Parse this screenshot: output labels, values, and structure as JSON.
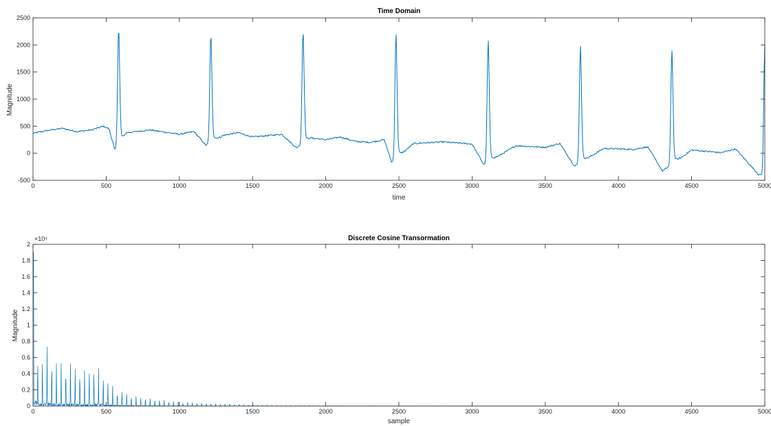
{
  "chart_data": [
    {
      "type": "line",
      "title": "Time Domain",
      "xlabel": "time",
      "ylabel": "Magnitude",
      "xlim": [
        0,
        5000
      ],
      "ylim": [
        -500,
        2500
      ],
      "xticks": [
        0,
        500,
        1000,
        1500,
        2000,
        2500,
        3000,
        3500,
        4000,
        4500,
        5000
      ],
      "yticks": [
        -500,
        0,
        500,
        1000,
        1500,
        2000,
        2500
      ],
      "grid": false,
      "color": "#0072BD",
      "baseline_points": [
        [
          0,
          370
        ],
        [
          100,
          420
        ],
        [
          200,
          460
        ],
        [
          300,
          400
        ],
        [
          400,
          430
        ],
        [
          480,
          500
        ],
        [
          520,
          450
        ],
        [
          560,
          50
        ],
        [
          640,
          380
        ],
        [
          800,
          430
        ],
        [
          1000,
          350
        ],
        [
          1100,
          400
        ],
        [
          1180,
          150
        ],
        [
          1300,
          330
        ],
        [
          1400,
          380
        ],
        [
          1500,
          300
        ],
        [
          1700,
          350
        ],
        [
          1800,
          100
        ],
        [
          1900,
          280
        ],
        [
          2000,
          250
        ],
        [
          2100,
          300
        ],
        [
          2200,
          220
        ],
        [
          2300,
          200
        ],
        [
          2400,
          250
        ],
        [
          2450,
          -170
        ],
        [
          2600,
          180
        ],
        [
          2800,
          210
        ],
        [
          3000,
          170
        ],
        [
          3080,
          -210
        ],
        [
          3300,
          140
        ],
        [
          3500,
          110
        ],
        [
          3600,
          180
        ],
        [
          3700,
          -240
        ],
        [
          3900,
          90
        ],
        [
          4100,
          70
        ],
        [
          4200,
          120
        ],
        [
          4300,
          -330
        ],
        [
          4500,
          60
        ],
        [
          4700,
          10
        ],
        [
          4800,
          80
        ],
        [
          4960,
          -400
        ]
      ],
      "peaks": [
        {
          "x": 585,
          "y": 2330
        },
        {
          "x": 1215,
          "y": 2200
        },
        {
          "x": 1845,
          "y": 2260
        },
        {
          "x": 2480,
          "y": 2210
        },
        {
          "x": 3110,
          "y": 2090
        },
        {
          "x": 3740,
          "y": 1990
        },
        {
          "x": 4365,
          "y": 1910
        },
        {
          "x": 5000,
          "y": 2020
        }
      ]
    },
    {
      "type": "line",
      "title": "Discrete Cosine Transormation",
      "xlabel": "sample",
      "ylabel": "Magnitude",
      "ylabel_exponent": "×10⁴",
      "xlim": [
        0,
        5000
      ],
      "ylim": [
        0,
        2
      ],
      "xticks": [
        0,
        500,
        1000,
        1500,
        2000,
        2500,
        3000,
        3500,
        4000,
        4500,
        5000
      ],
      "yticks": [
        0,
        0.2,
        0.4,
        0.6,
        0.8,
        1,
        1.2,
        1.4,
        1.6,
        1.8,
        2
      ],
      "grid": false,
      "color": "#0072BD",
      "harmonic_spacing": 32,
      "harmonic_peaks": [
        [
          0,
          1.9
        ],
        [
          32,
          0.62
        ],
        [
          64,
          0.57
        ],
        [
          96,
          0.72
        ],
        [
          128,
          0.58
        ],
        [
          160,
          0.55
        ],
        [
          192,
          0.54
        ],
        [
          224,
          0.53
        ],
        [
          256,
          0.53
        ],
        [
          288,
          0.49
        ],
        [
          320,
          0.44
        ],
        [
          352,
          0.44
        ],
        [
          384,
          0.47
        ],
        [
          416,
          0.47
        ],
        [
          448,
          0.46
        ],
        [
          480,
          0.4
        ],
        [
          512,
          0.3
        ],
        [
          544,
          0.24
        ],
        [
          576,
          0.19
        ],
        [
          608,
          0.17
        ],
        [
          640,
          0.15
        ],
        [
          700,
          0.12
        ],
        [
          800,
          0.09
        ],
        [
          900,
          0.07
        ],
        [
          1000,
          0.05
        ],
        [
          1100,
          0.04
        ],
        [
          1200,
          0.03
        ],
        [
          1300,
          0.025
        ],
        [
          1400,
          0.02
        ],
        [
          1500,
          0.013
        ],
        [
          1700,
          0.008
        ],
        [
          2000,
          0.005
        ],
        [
          2500,
          0.003
        ],
        [
          3000,
          0.002
        ],
        [
          4000,
          0.001
        ],
        [
          5000,
          0.001
        ]
      ]
    }
  ]
}
